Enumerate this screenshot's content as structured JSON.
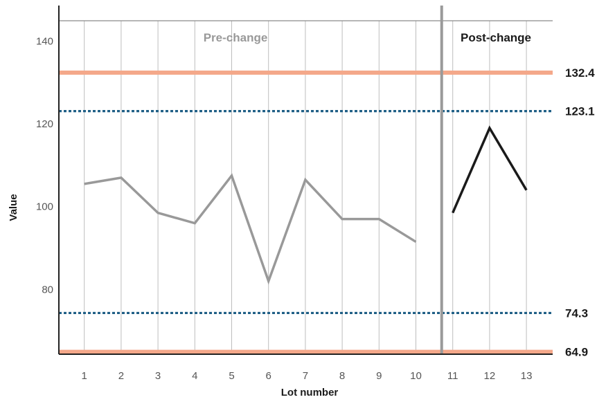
{
  "chart_data": {
    "type": "line",
    "xlabel": "Lot number",
    "ylabel": "Value",
    "x": [
      1,
      2,
      3,
      4,
      5,
      6,
      7,
      8,
      9,
      10,
      11,
      12,
      13
    ],
    "xlim": [
      0,
      14
    ],
    "ylim": [
      63,
      143
    ],
    "y_ticks": [
      80,
      100,
      120,
      140
    ],
    "grid": "vertical",
    "phase_divider_after_lot": 10.7,
    "phases": [
      {
        "label": "Pre-change",
        "color": "#999999"
      },
      {
        "label": "Post-change",
        "color": "#1a1a1a"
      }
    ],
    "series": [
      {
        "color": "#999999",
        "x": [
          1,
          2,
          3,
          4,
          5,
          6,
          7,
          8,
          9,
          10
        ],
        "values": [
          105.5,
          107,
          98.5,
          96,
          107.5,
          82,
          106.5,
          97,
          97,
          91.5
        ]
      },
      {
        "color": "#1a1a1a",
        "x": [
          11,
          12,
          13
        ],
        "values": [
          98.5,
          119,
          104
        ]
      }
    ],
    "reference_lines": [
      {
        "value": 132.4,
        "label": "132.4",
        "style": "solid",
        "color": "#f4a88a"
      },
      {
        "value": 123.1,
        "label": "123.1",
        "style": "dotted",
        "color": "#1f5f86"
      },
      {
        "value": 74.3,
        "label": "74.3",
        "style": "dotted",
        "color": "#1f5f86"
      },
      {
        "value": 64.9,
        "label": "64.9",
        "style": "solid",
        "color": "#f4a88a"
      }
    ]
  }
}
